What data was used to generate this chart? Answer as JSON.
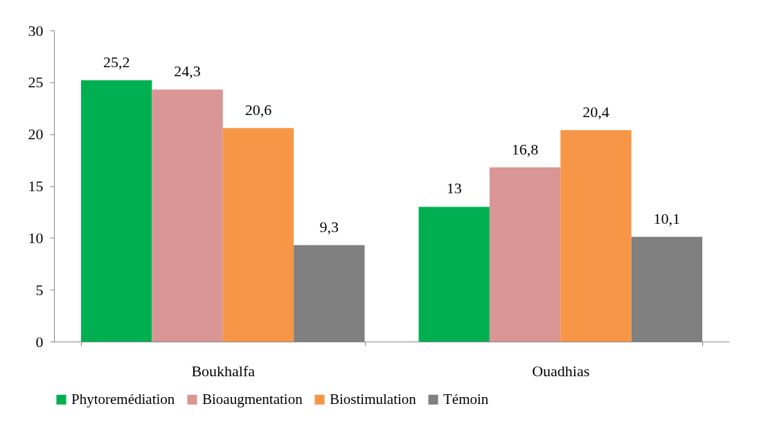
{
  "chart_data": {
    "type": "bar",
    "categories": [
      "Boukhalfa",
      "Ouadhias"
    ],
    "series": [
      {
        "name": "Phytoremédiation",
        "color": "#00b050",
        "values": [
          25.2,
          13
        ],
        "value_labels": [
          "25,2",
          "13"
        ]
      },
      {
        "name": "Bioaugmentation",
        "color": "#d99694",
        "values": [
          24.3,
          16.8
        ],
        "value_labels": [
          "24,3",
          "16,8"
        ]
      },
      {
        "name": "Biostimulation",
        "color": "#f79646",
        "values": [
          20.6,
          20.4
        ],
        "value_labels": [
          "20,6",
          "20,4"
        ]
      },
      {
        "name": "Témoin",
        "color": "#808080",
        "values": [
          9.3,
          10.1
        ],
        "value_labels": [
          "9,3",
          "10,1"
        ]
      }
    ],
    "ylim": [
      0,
      30
    ],
    "yticks": [
      0,
      5,
      10,
      15,
      20,
      25,
      30
    ],
    "grid": false,
    "legend": "bottom"
  }
}
